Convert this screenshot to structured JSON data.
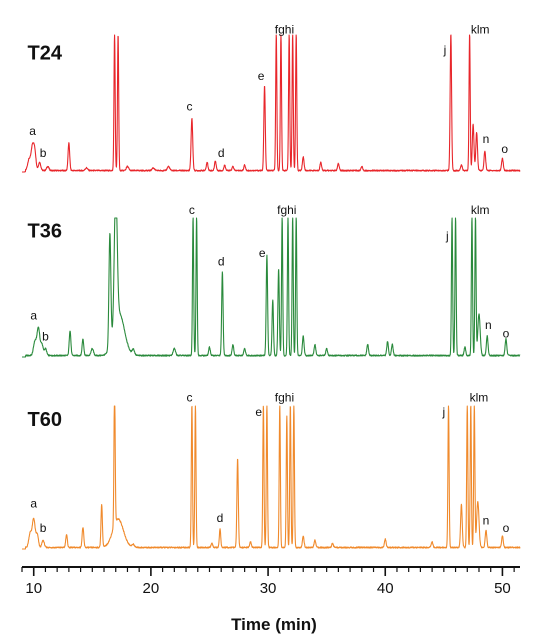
{
  "chart_data": {
    "type": "line",
    "title": "",
    "xlabel": "Time (min)",
    "ylabel": "",
    "xlim": [
      9,
      51.5
    ],
    "ylim": [
      0,
      100
    ],
    "grid": false,
    "x_ticks": [
      10,
      20,
      30,
      40,
      50
    ],
    "series": [
      {
        "name": "T24",
        "color": "#e8262b",
        "peaks": [
          {
            "x": 9.6,
            "y": 8,
            "w": 0.12
          },
          {
            "x": 9.9,
            "y": 18,
            "w": 0.12
          },
          {
            "x": 10.1,
            "y": 12,
            "w": 0.1
          },
          {
            "x": 10.5,
            "y": 6,
            "w": 0.1
          },
          {
            "x": 11.2,
            "y": 3,
            "w": 0.1
          },
          {
            "x": 13.0,
            "y": 20,
            "w": 0.07
          },
          {
            "x": 14.5,
            "y": 2,
            "w": 0.1
          },
          {
            "x": 16.9,
            "y": 100,
            "w": 0.05
          },
          {
            "x": 17.2,
            "y": 100,
            "w": 0.05
          },
          {
            "x": 18.0,
            "y": 3,
            "w": 0.1
          },
          {
            "x": 20.2,
            "y": 2,
            "w": 0.1
          },
          {
            "x": 21.5,
            "y": 3,
            "w": 0.1
          },
          {
            "x": 23.5,
            "y": 38,
            "w": 0.07
          },
          {
            "x": 24.8,
            "y": 6,
            "w": 0.07
          },
          {
            "x": 25.5,
            "y": 7,
            "w": 0.07
          },
          {
            "x": 26.3,
            "y": 4,
            "w": 0.07
          },
          {
            "x": 27.0,
            "y": 3,
            "w": 0.07
          },
          {
            "x": 28.0,
            "y": 4,
            "w": 0.07
          },
          {
            "x": 29.7,
            "y": 62,
            "w": 0.06
          },
          {
            "x": 30.7,
            "y": 100,
            "w": 0.05
          },
          {
            "x": 31.1,
            "y": 100,
            "w": 0.05
          },
          {
            "x": 31.8,
            "y": 100,
            "w": 0.05
          },
          {
            "x": 32.1,
            "y": 100,
            "w": 0.05
          },
          {
            "x": 32.4,
            "y": 100,
            "w": 0.05
          },
          {
            "x": 33.0,
            "y": 10,
            "w": 0.07
          },
          {
            "x": 34.5,
            "y": 6,
            "w": 0.07
          },
          {
            "x": 36.0,
            "y": 5,
            "w": 0.07
          },
          {
            "x": 38.0,
            "y": 3,
            "w": 0.07
          },
          {
            "x": 45.6,
            "y": 100,
            "w": 0.06
          },
          {
            "x": 46.5,
            "y": 4,
            "w": 0.07
          },
          {
            "x": 47.2,
            "y": 100,
            "w": 0.05
          },
          {
            "x": 47.5,
            "y": 34,
            "w": 0.07
          },
          {
            "x": 47.8,
            "y": 28,
            "w": 0.07
          },
          {
            "x": 48.5,
            "y": 14,
            "w": 0.07
          },
          {
            "x": 50.0,
            "y": 9,
            "w": 0.07
          }
        ],
        "labels": [
          {
            "text": "T24",
            "kind": "trace",
            "x": 9.3,
            "y": 82
          },
          {
            "text": "a",
            "kind": "peak",
            "x": 9.9,
            "y": 27
          },
          {
            "text": "b",
            "kind": "peak",
            "x": 10.8,
            "y": 11
          },
          {
            "text": "c",
            "kind": "peak",
            "x": 23.3,
            "y": 45
          },
          {
            "text": "d",
            "kind": "peak",
            "x": 26.0,
            "y": 11
          },
          {
            "text": "e",
            "kind": "peak",
            "x": 29.4,
            "y": 67
          },
          {
            "text": "fghi",
            "kind": "peak",
            "x": 31.4,
            "y": 101
          },
          {
            "text": "j",
            "kind": "peak",
            "x": 45.1,
            "y": 86
          },
          {
            "text": "klm",
            "kind": "peak",
            "x": 48.1,
            "y": 101
          },
          {
            "text": "n",
            "kind": "peak",
            "x": 48.6,
            "y": 21
          },
          {
            "text": "o",
            "kind": "peak",
            "x": 50.2,
            "y": 14
          }
        ]
      },
      {
        "name": "T36",
        "color": "#2a8a3c",
        "peaks": [
          {
            "x": 10.1,
            "y": 10,
            "w": 0.12
          },
          {
            "x": 10.4,
            "y": 20,
            "w": 0.12
          },
          {
            "x": 10.7,
            "y": 8,
            "w": 0.1
          },
          {
            "x": 11.0,
            "y": 5,
            "w": 0.1
          },
          {
            "x": 13.1,
            "y": 18,
            "w": 0.07
          },
          {
            "x": 14.2,
            "y": 12,
            "w": 0.07
          },
          {
            "x": 15.0,
            "y": 5,
            "w": 0.1
          },
          {
            "x": 16.5,
            "y": 82,
            "w": 0.08
          },
          {
            "x": 17.0,
            "y": 100,
            "w": 0.12
          },
          {
            "x": 17.3,
            "y": 30,
            "w": 0.45
          },
          {
            "x": 18.5,
            "y": 4,
            "w": 0.1
          },
          {
            "x": 22.0,
            "y": 5,
            "w": 0.1
          },
          {
            "x": 23.6,
            "y": 100,
            "w": 0.05
          },
          {
            "x": 23.9,
            "y": 100,
            "w": 0.05
          },
          {
            "x": 25.0,
            "y": 6,
            "w": 0.07
          },
          {
            "x": 26.1,
            "y": 60,
            "w": 0.06
          },
          {
            "x": 27.0,
            "y": 8,
            "w": 0.07
          },
          {
            "x": 28.0,
            "y": 5,
            "w": 0.07
          },
          {
            "x": 29.9,
            "y": 72,
            "w": 0.06
          },
          {
            "x": 30.4,
            "y": 40,
            "w": 0.06
          },
          {
            "x": 30.9,
            "y": 62,
            "w": 0.06
          },
          {
            "x": 31.2,
            "y": 100,
            "w": 0.05
          },
          {
            "x": 31.7,
            "y": 100,
            "w": 0.05
          },
          {
            "x": 32.1,
            "y": 100,
            "w": 0.05
          },
          {
            "x": 32.4,
            "y": 100,
            "w": 0.05
          },
          {
            "x": 33.0,
            "y": 14,
            "w": 0.07
          },
          {
            "x": 34.0,
            "y": 8,
            "w": 0.07
          },
          {
            "x": 35.0,
            "y": 5,
            "w": 0.07
          },
          {
            "x": 38.5,
            "y": 8,
            "w": 0.07
          },
          {
            "x": 40.2,
            "y": 10,
            "w": 0.07
          },
          {
            "x": 40.6,
            "y": 8,
            "w": 0.07
          },
          {
            "x": 45.7,
            "y": 100,
            "w": 0.05
          },
          {
            "x": 46.0,
            "y": 100,
            "w": 0.05
          },
          {
            "x": 46.8,
            "y": 6,
            "w": 0.07
          },
          {
            "x": 47.4,
            "y": 100,
            "w": 0.05
          },
          {
            "x": 47.7,
            "y": 100,
            "w": 0.05
          },
          {
            "x": 48.0,
            "y": 30,
            "w": 0.1
          },
          {
            "x": 48.7,
            "y": 14,
            "w": 0.07
          },
          {
            "x": 50.3,
            "y": 12,
            "w": 0.07
          }
        ],
        "labels": [
          {
            "text": "T36",
            "kind": "trace",
            "x": 9.3,
            "y": 86
          },
          {
            "text": "a",
            "kind": "peak",
            "x": 10.0,
            "y": 27
          },
          {
            "text": "b",
            "kind": "peak",
            "x": 11.0,
            "y": 12
          },
          {
            "text": "c",
            "kind": "peak",
            "x": 23.5,
            "y": 103
          },
          {
            "text": "d",
            "kind": "peak",
            "x": 26.0,
            "y": 66
          },
          {
            "text": "e",
            "kind": "peak",
            "x": 29.5,
            "y": 72
          },
          {
            "text": "fghi",
            "kind": "peak",
            "x": 31.6,
            "y": 103
          },
          {
            "text": "j",
            "kind": "peak",
            "x": 45.3,
            "y": 84
          },
          {
            "text": "klm",
            "kind": "peak",
            "x": 48.1,
            "y": 103
          },
          {
            "text": "n",
            "kind": "peak",
            "x": 48.8,
            "y": 20
          },
          {
            "text": "o",
            "kind": "peak",
            "x": 50.3,
            "y": 14
          }
        ]
      },
      {
        "name": "T60",
        "color": "#f08a2c",
        "peaks": [
          {
            "x": 9.7,
            "y": 10,
            "w": 0.12
          },
          {
            "x": 10.0,
            "y": 20,
            "w": 0.12
          },
          {
            "x": 10.3,
            "y": 9,
            "w": 0.1
          },
          {
            "x": 10.8,
            "y": 5,
            "w": 0.1
          },
          {
            "x": 12.8,
            "y": 9,
            "w": 0.07
          },
          {
            "x": 14.2,
            "y": 14,
            "w": 0.07
          },
          {
            "x": 15.8,
            "y": 30,
            "w": 0.06
          },
          {
            "x": 16.9,
            "y": 100,
            "w": 0.05
          },
          {
            "x": 17.2,
            "y": 20,
            "w": 0.45
          },
          {
            "x": 18.5,
            "y": 2,
            "w": 0.1
          },
          {
            "x": 23.5,
            "y": 100,
            "w": 0.05
          },
          {
            "x": 23.8,
            "y": 100,
            "w": 0.05
          },
          {
            "x": 25.2,
            "y": 3,
            "w": 0.07
          },
          {
            "x": 25.9,
            "y": 13,
            "w": 0.06
          },
          {
            "x": 27.4,
            "y": 62,
            "w": 0.06
          },
          {
            "x": 28.5,
            "y": 4,
            "w": 0.07
          },
          {
            "x": 29.6,
            "y": 100,
            "w": 0.05
          },
          {
            "x": 29.9,
            "y": 100,
            "w": 0.05
          },
          {
            "x": 31.0,
            "y": 100,
            "w": 0.05
          },
          {
            "x": 31.6,
            "y": 92,
            "w": 0.05
          },
          {
            "x": 31.9,
            "y": 100,
            "w": 0.05
          },
          {
            "x": 32.2,
            "y": 100,
            "w": 0.05
          },
          {
            "x": 33.0,
            "y": 8,
            "w": 0.07
          },
          {
            "x": 34.0,
            "y": 5,
            "w": 0.07
          },
          {
            "x": 35.5,
            "y": 3,
            "w": 0.07
          },
          {
            "x": 40.0,
            "y": 6,
            "w": 0.07
          },
          {
            "x": 44.0,
            "y": 4,
            "w": 0.07
          },
          {
            "x": 45.4,
            "y": 100,
            "w": 0.05
          },
          {
            "x": 46.5,
            "y": 30,
            "w": 0.07
          },
          {
            "x": 47.0,
            "y": 100,
            "w": 0.05
          },
          {
            "x": 47.3,
            "y": 100,
            "w": 0.05
          },
          {
            "x": 47.6,
            "y": 100,
            "w": 0.05
          },
          {
            "x": 47.9,
            "y": 32,
            "w": 0.1
          },
          {
            "x": 48.6,
            "y": 12,
            "w": 0.07
          },
          {
            "x": 50.0,
            "y": 8,
            "w": 0.07
          }
        ],
        "labels": [
          {
            "text": "T60",
            "kind": "trace",
            "x": 9.3,
            "y": 86
          },
          {
            "text": "a",
            "kind": "peak",
            "x": 10.0,
            "y": 29
          },
          {
            "text": "b",
            "kind": "peak",
            "x": 10.8,
            "y": 12
          },
          {
            "text": "c",
            "kind": "peak",
            "x": 23.3,
            "y": 103
          },
          {
            "text": "d",
            "kind": "peak",
            "x": 25.9,
            "y": 19
          },
          {
            "text": "e",
            "kind": "peak",
            "x": 29.2,
            "y": 93
          },
          {
            "text": "fghi",
            "kind": "peak",
            "x": 31.4,
            "y": 103
          },
          {
            "text": "j",
            "kind": "peak",
            "x": 45.0,
            "y": 93
          },
          {
            "text": "klm",
            "kind": "peak",
            "x": 48.0,
            "y": 103
          },
          {
            "text": "n",
            "kind": "peak",
            "x": 48.6,
            "y": 17
          },
          {
            "text": "o",
            "kind": "peak",
            "x": 50.3,
            "y": 12
          }
        ]
      }
    ]
  }
}
